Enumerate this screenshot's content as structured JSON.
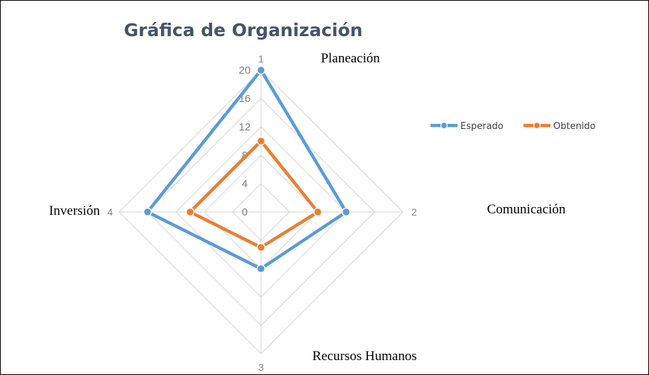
{
  "chart_data": {
    "type": "radar",
    "title": "Gráfica de Organización",
    "categories": [
      "1",
      "2",
      "3",
      "4"
    ],
    "category_labels": [
      "Planeación",
      "Comunicación",
      "Recursos Humanos",
      "Inversión"
    ],
    "rlim": [
      0,
      20
    ],
    "ticks": [
      "0",
      "4",
      "8",
      "12",
      "16",
      "20"
    ],
    "grid": true,
    "legend_position": "right",
    "series": [
      {
        "name": "Esperado",
        "color": "#5b9bd5",
        "values": [
          20,
          12,
          8,
          16
        ]
      },
      {
        "name": "Obtenido",
        "color": "#ed7d31",
        "values": [
          10,
          8,
          5,
          10
        ]
      }
    ],
    "grid_color": "#d9d9d9",
    "title_color": "#44546a"
  }
}
